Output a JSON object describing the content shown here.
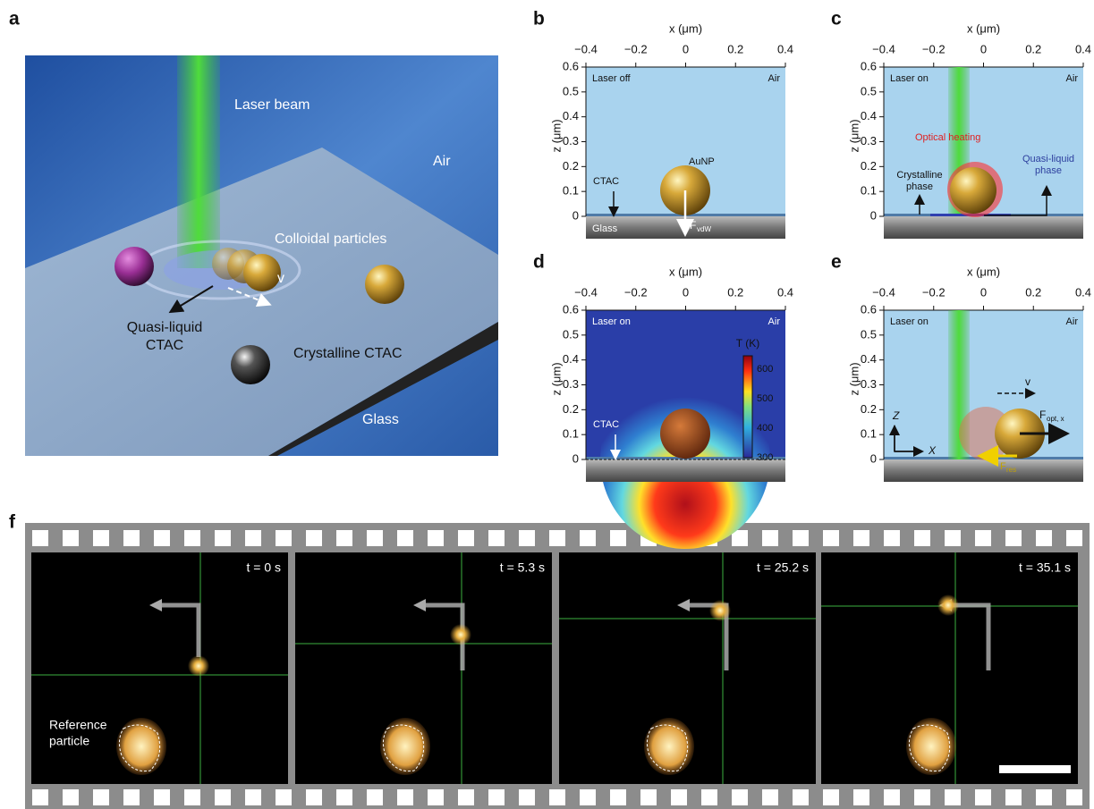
{
  "panel_a": {
    "label": "a",
    "laser_beam": "Laser beam",
    "air": "Air",
    "colloidal_particles": "Colloidal particles",
    "quasi_liquid": [
      "Quasi-liquid",
      "CTAC"
    ],
    "velocity": "v",
    "crystalline": "Crystalline CTAC",
    "glass": "Glass"
  },
  "axes": {
    "x_title": "x (μm)",
    "z_title": "z (μm)",
    "xticks": [
      "−0.4",
      "−0.2",
      "0",
      "0.2",
      "0.4"
    ],
    "zticks": [
      "0",
      "0.1",
      "0.2",
      "0.3",
      "0.4",
      "0.5",
      "0.6"
    ]
  },
  "panel_b": {
    "label": "b",
    "state": "Laser off",
    "medium": "Air",
    "particle": "AuNP",
    "ctac": "CTAC",
    "glass": "Glass",
    "force": "F",
    "force_sub": "vdW"
  },
  "panel_c": {
    "label": "c",
    "state": "Laser on",
    "medium": "Air",
    "heating": "Optical heating",
    "crystalline": [
      "Crystalline",
      "phase"
    ],
    "quasi_liquid": [
      "Quasi-liquid",
      "phase"
    ]
  },
  "panel_d": {
    "label": "d",
    "state": "Laser on",
    "medium": "Air",
    "colorbar_title": "T (K)",
    "colorbar_ticks": [
      "300",
      "400",
      "500",
      "600"
    ],
    "ctac": "CTAC"
  },
  "panel_e": {
    "label": "e",
    "state": "Laser on",
    "medium": "Air",
    "velocity": "v",
    "f_opt": "F",
    "f_opt_sub": "opt, x",
    "f_res": "F",
    "f_res_sub": "res",
    "z_axis": "Z",
    "x_axis": "X"
  },
  "panel_f": {
    "label": "f",
    "times": [
      "t = 0 s",
      "t = 5.3 s",
      "t = 25.2 s",
      "t = 35.1 s"
    ],
    "reference": [
      "Reference",
      "particle"
    ]
  }
}
